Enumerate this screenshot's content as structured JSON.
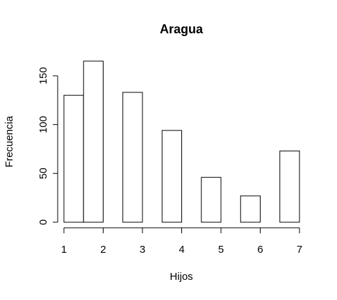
{
  "chart_data": {
    "type": "bar",
    "title": "Aragua",
    "xlabel": "Hijos",
    "ylabel": "Frecuencia",
    "bin_edges": [
      1,
      1.5,
      2,
      2.5,
      3,
      3.5,
      4,
      4.5,
      5,
      5.5,
      6,
      6.5,
      7
    ],
    "values": [
      130,
      165,
      0,
      133,
      0,
      94,
      0,
      46,
      0,
      27,
      0,
      73
    ],
    "x_ticks": [
      "1",
      "2",
      "3",
      "4",
      "5",
      "6",
      "7"
    ],
    "y_ticks": [
      "0",
      "50",
      "100",
      "150"
    ],
    "xlim": [
      1,
      7
    ],
    "ylim": [
      0,
      165
    ],
    "grid": false,
    "bar_fill": "#ffffff",
    "bar_stroke": "#000000"
  }
}
